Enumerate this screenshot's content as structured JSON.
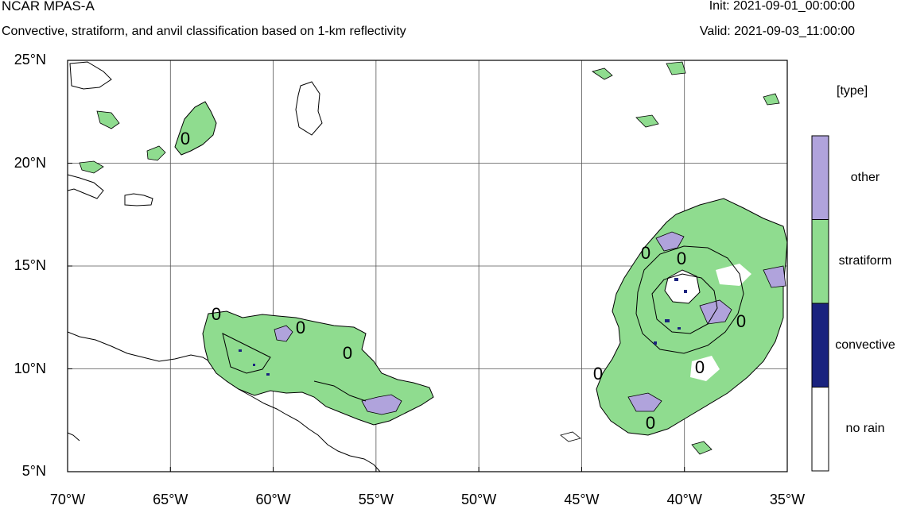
{
  "header": {
    "title": "NCAR MPAS-A",
    "subtitle": "Convective, stratiform, and anvil classification based on 1-km reflectivity",
    "init": "Init: 2021-09-01_00:00:00",
    "valid": "Valid: 2021-09-03_11:00:00"
  },
  "map": {
    "lon_range": [
      -70,
      -35
    ],
    "lat_range": [
      5,
      25
    ],
    "x_ticks": [
      "70°W",
      "65°W",
      "60°W",
      "55°W",
      "50°W",
      "45°W",
      "40°W",
      "35°W"
    ],
    "y_ticks": [
      "25°N",
      "20°N",
      "15°N",
      "10°N",
      "5°N"
    ],
    "gridlines": true,
    "contour_label": "0"
  },
  "legend": {
    "title": "[type]",
    "items": [
      {
        "label": "other",
        "color": "#b0a3dc"
      },
      {
        "label": "stratiform",
        "color": "#8fdc8f"
      },
      {
        "label": "convective",
        "color": "#1a237e"
      },
      {
        "label": "no rain",
        "color": "#ffffff"
      }
    ]
  }
}
